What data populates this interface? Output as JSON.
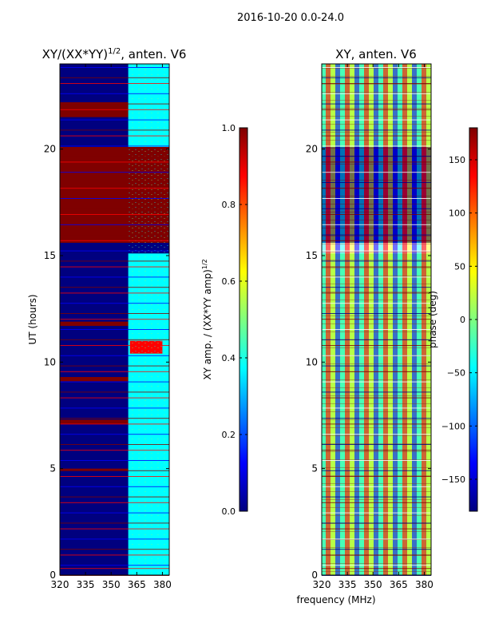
{
  "suptitle": "2016-10-20 0.0-24.0",
  "colors": {
    "background": "#ffffff",
    "frame": "#000000",
    "jet": [
      "#00007f",
      "#0000ff",
      "#007fff",
      "#00ffff",
      "#7fff7f",
      "#ffff00",
      "#ff7f00",
      "#ff0000",
      "#7f0000"
    ]
  },
  "chart_data": [
    {
      "type": "heatmap",
      "title_main": "XY/(XX*YY)",
      "title_sup": "1/2",
      "title_tail": ", anten. V6",
      "xlabel": "",
      "ylabel": "UT (hours)",
      "xlim": [
        320,
        384
      ],
      "ylim": [
        0,
        24
      ],
      "xticks": [
        320,
        335,
        350,
        365,
        380
      ],
      "yticks": [
        0,
        5,
        10,
        15,
        20
      ],
      "colormap": "jet",
      "colorbar": {
        "label_main": "XY amp. / (XX*YY amp)",
        "label_sup": "1/2",
        "vmin": 0.0,
        "vmax": 1.0,
        "ticks": [
          0.0,
          0.2,
          0.4,
          0.6,
          0.8,
          1.0
        ],
        "tick_labels": [
          "0.0",
          "0.2",
          "0.4",
          "0.6",
          "0.8",
          "1.0"
        ]
      },
      "regions": [
        {
          "t0": 0.0,
          "t1": 24.0,
          "f0": 320,
          "f1": 384,
          "value": 0.04
        },
        {
          "t0": 15.6,
          "t1": 20.1,
          "f0": 320,
          "f1": 384,
          "value": 1.0
        },
        {
          "t0": 21.5,
          "t1": 22.2,
          "f0": 320,
          "f1": 384,
          "value": 1.0
        },
        {
          "t0": 9.1,
          "t1": 9.3,
          "f0": 320,
          "f1": 384,
          "value": 1.0
        },
        {
          "t0": 11.7,
          "t1": 11.9,
          "f0": 320,
          "f1": 384,
          "value": 1.0
        },
        {
          "t0": 7.1,
          "t1": 7.3,
          "f0": 320,
          "f1": 384,
          "value": 1.0
        },
        {
          "t0": 4.9,
          "t1": 5.0,
          "f0": 320,
          "f1": 384,
          "value": 1.0
        },
        {
          "t0": 0.0,
          "t1": 15.1,
          "f0": 360,
          "f1": 384,
          "value": 0.38
        },
        {
          "t0": 20.1,
          "t1": 24.0,
          "f0": 360,
          "f1": 384,
          "value": 0.4
        },
        {
          "t0": 10.4,
          "t1": 11.0,
          "f0": 361,
          "f1": 380,
          "value": 0.85
        }
      ]
    },
    {
      "type": "heatmap",
      "title_main": "XY, anten. V6",
      "xlabel": "frequency (MHz)",
      "ylabel": "",
      "xlim": [
        320,
        384
      ],
      "ylim": [
        0,
        24
      ],
      "xticks": [
        320,
        335,
        350,
        365,
        380
      ],
      "yticks": [
        0,
        5,
        10,
        15,
        20
      ],
      "colormap": "jet",
      "colorbar": {
        "label_main": "phase (deg)",
        "vmin": -180,
        "vmax": 180,
        "ticks": [
          -150,
          -100,
          -50,
          0,
          50,
          100,
          150
        ],
        "tick_labels": [
          "−150",
          "−100",
          "−50",
          "0",
          "50",
          "100",
          "150"
        ]
      },
      "regions": [
        {
          "t0": 0.0,
          "t1": 15.1,
          "f0": 320,
          "f1": 384,
          "value": 0
        },
        {
          "t0": 15.6,
          "t1": 20.1,
          "f0": 320,
          "f1": 384,
          "value": -180
        },
        {
          "t0": 20.1,
          "t1": 24.0,
          "f0": 320,
          "f1": 384,
          "value": 0
        }
      ]
    }
  ]
}
